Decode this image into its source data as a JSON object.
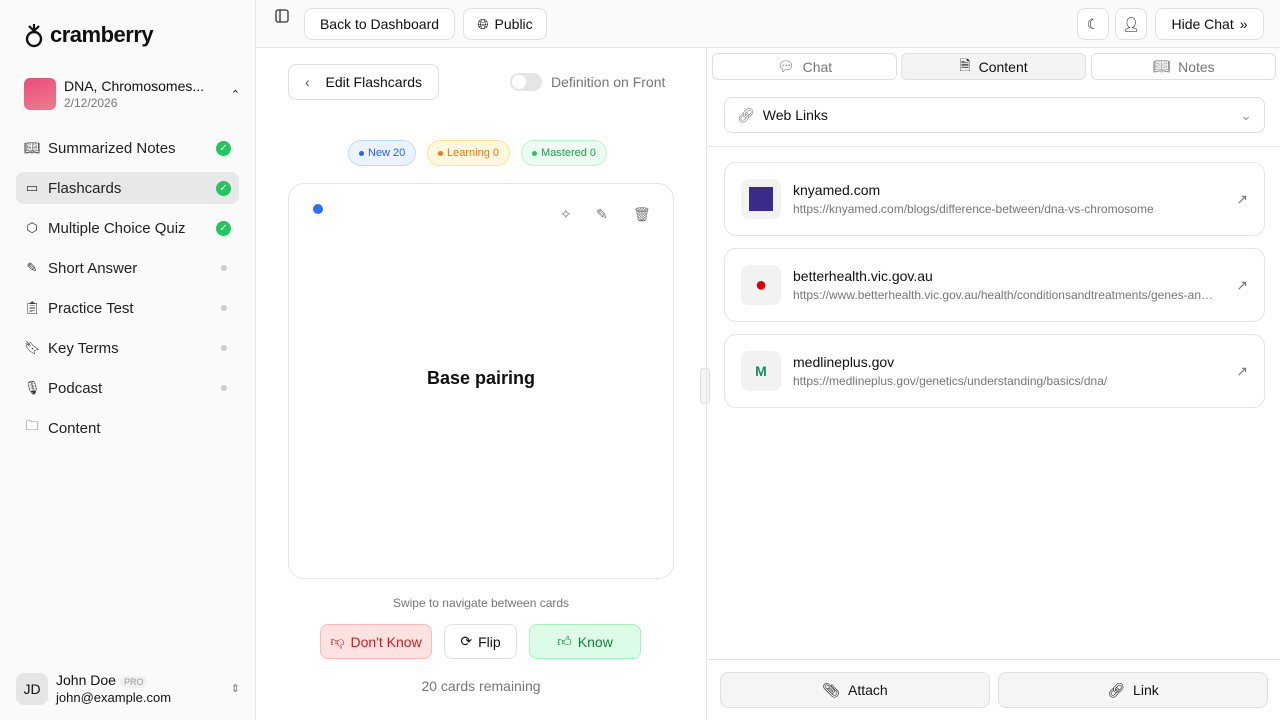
{
  "app": {
    "name": "cramberry"
  },
  "project": {
    "title": "DNA, Chromosomes...",
    "date": "2/12/2026"
  },
  "sidebar": {
    "items": [
      {
        "label": "Summarized Notes",
        "icon": "book-icon",
        "status": "done"
      },
      {
        "label": "Flashcards",
        "icon": "cards-icon",
        "status": "done",
        "active": true
      },
      {
        "label": "Multiple Choice Quiz",
        "icon": "cube-icon",
        "status": "done"
      },
      {
        "label": "Short Answer",
        "icon": "pencil-icon",
        "status": "pending"
      },
      {
        "label": "Practice Test",
        "icon": "clipboard-icon",
        "status": "pending"
      },
      {
        "label": "Key Terms",
        "icon": "bookmark-icon",
        "status": "pending"
      },
      {
        "label": "Podcast",
        "icon": "mic-icon",
        "status": "pending"
      },
      {
        "label": "Content",
        "icon": "folder-icon",
        "status": "none"
      }
    ]
  },
  "user": {
    "initials": "JD",
    "name": "John Doe",
    "plan": "PRO",
    "email": "john@example.com"
  },
  "topbar": {
    "back": "Back to Dashboard",
    "public": "Public",
    "hide_chat": "Hide Chat"
  },
  "flashcards": {
    "edit": "Edit Flashcards",
    "toggle_label": "Definition on Front",
    "toggle_on": false,
    "badges": {
      "new": "New 20",
      "learning": "Learning 0",
      "mastered": "Mastered 0"
    },
    "card_text": "Base pairing",
    "hint": "Swipe to navigate between cards",
    "dont_know": "Don't Know",
    "flip": "Flip",
    "know": "Know",
    "remaining": "20 cards remaining"
  },
  "right": {
    "tabs": [
      "Chat",
      "Content",
      "Notes"
    ],
    "active_tab": "Content",
    "dropdown": "Web Links",
    "links": [
      {
        "domain": "knyamed.com",
        "url": "https://knyamed.com/blogs/difference-between/dna-vs-chromosome"
      },
      {
        "domain": "betterhealth.vic.gov.au",
        "url": "https://www.betterhealth.vic.gov.au/health/conditionsandtreatments/genes-and-genetics"
      },
      {
        "domain": "medlineplus.gov",
        "url": "https://medlineplus.gov/genetics/understanding/basics/dna/"
      }
    ],
    "attach": "Attach",
    "link": "Link"
  },
  "colors": {
    "accent_green": "#22c55e",
    "new": "#2563eb",
    "learning": "#ea7a0c",
    "mastered": "#16a34a",
    "dont_know_bg": "#fde2e2",
    "know_bg": "#dcfce7"
  }
}
